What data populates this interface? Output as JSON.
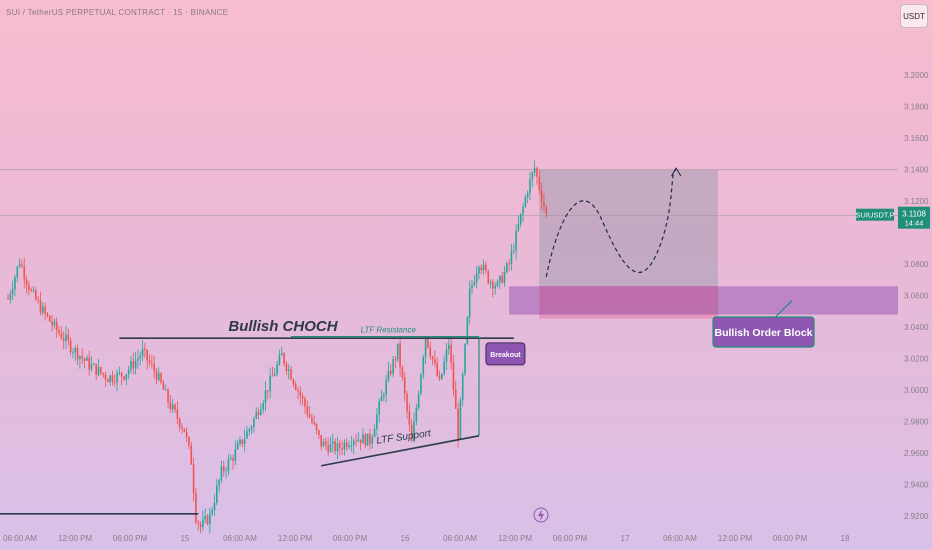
{
  "header": {
    "title": "SUI / TetherUS PERPETUAL CONTRACT · 15 · BINANCE",
    "currency_button": "USDT"
  },
  "colors": {
    "up": "#26a69a",
    "down": "#ef5350",
    "dark_line": "#2d3a4a",
    "accent_teal": "#1f8f78",
    "purple": "#9b59b6",
    "label_purple": "#8e56b0"
  },
  "chart_data": {
    "type": "candlestick",
    "title": "SUI / TetherUS PERPETUAL CONTRACT · 15 · BINANCE",
    "symbol": "SUIUSDT.P",
    "last_price": "3.1108",
    "countdown": "14:44",
    "ylim": [
      2.915,
      3.23
    ],
    "y_ticks": [
      {
        "value": 2.92,
        "label": "2.9200"
      },
      {
        "value": 2.94,
        "label": "2.9400"
      },
      {
        "value": 2.96,
        "label": "2.9600"
      },
      {
        "value": 2.98,
        "label": "2.9800"
      },
      {
        "value": 3.0,
        "label": "3.0000"
      },
      {
        "value": 3.02,
        "label": "3.0200"
      },
      {
        "value": 3.04,
        "label": "3.0400"
      },
      {
        "value": 3.06,
        "label": "3.0600"
      },
      {
        "value": 3.08,
        "label": "3.0800"
      },
      {
        "value": 3.12,
        "label": "3.1200"
      },
      {
        "value": 3.14,
        "label": "3.1400"
      },
      {
        "value": 3.16,
        "label": "3.1600"
      },
      {
        "value": 3.18,
        "label": "3.1800"
      },
      {
        "value": 3.2,
        "label": "3.2000"
      }
    ],
    "x_ticks": [
      "06:00 AM",
      "12:00 PM",
      "06:00 PM",
      "15",
      "06:00 AM",
      "12:00 PM",
      "06:00 PM",
      "16",
      "06:00 AM",
      "12:00 PM",
      "06:00 PM",
      "17",
      "06:00 AM",
      "12:00 PM",
      "06:00 PM",
      "18"
    ],
    "candle_count": 180,
    "price_path": [
      [
        0,
        3.058
      ],
      [
        5,
        3.082
      ],
      [
        10,
        3.062
      ],
      [
        15,
        3.05
      ],
      [
        20,
        3.04
      ],
      [
        27,
        3.028
      ],
      [
        35,
        3.016
      ],
      [
        43,
        3.008
      ],
      [
        50,
        3.01
      ],
      [
        58,
        3.024
      ],
      [
        64,
        3.01
      ],
      [
        70,
        2.99
      ],
      [
        76,
        2.975
      ],
      [
        79,
        2.955
      ],
      [
        81,
        2.92
      ],
      [
        83,
        2.913
      ],
      [
        87,
        2.92
      ],
      [
        92,
        2.948
      ],
      [
        97,
        2.958
      ],
      [
        105,
        2.978
      ],
      [
        112,
        3.002
      ],
      [
        118,
        3.022
      ],
      [
        122,
        3.01
      ],
      [
        128,
        2.99
      ],
      [
        135,
        2.966
      ],
      [
        142,
        2.963
      ],
      [
        149,
        2.97
      ],
      [
        156,
        2.968
      ],
      [
        162,
        3.0
      ],
      [
        168,
        3.026
      ],
      [
        174,
        2.966
      ],
      [
        180,
        3.035
      ],
      [
        186,
        3.004
      ],
      [
        190,
        3.03
      ],
      [
        194,
        2.972
      ],
      [
        199,
        3.062
      ],
      [
        203,
        3.082
      ],
      [
        207,
        3.071
      ],
      [
        211,
        3.066
      ],
      [
        216,
        3.08
      ],
      [
        220,
        3.104
      ],
      [
        224,
        3.128
      ],
      [
        227,
        3.141
      ],
      [
        230,
        3.123
      ],
      [
        232,
        3.111
      ]
    ],
    "levels": [
      {
        "name": "horizontal-level",
        "value": 3.14
      },
      {
        "name": "current-price-line",
        "value": 3.1108
      }
    ],
    "annotations": {
      "bullish_choch": "Bullish CHOCH",
      "ltf_resistance": "LTF Resistance",
      "ltf_support": "LTF Support",
      "breakout": "Breakout",
      "bullish_order_block": "Bullish Order Block"
    },
    "order_block_range": [
      3.048,
      3.066
    ],
    "target_zone_range": [
      3.048,
      3.14
    ]
  }
}
